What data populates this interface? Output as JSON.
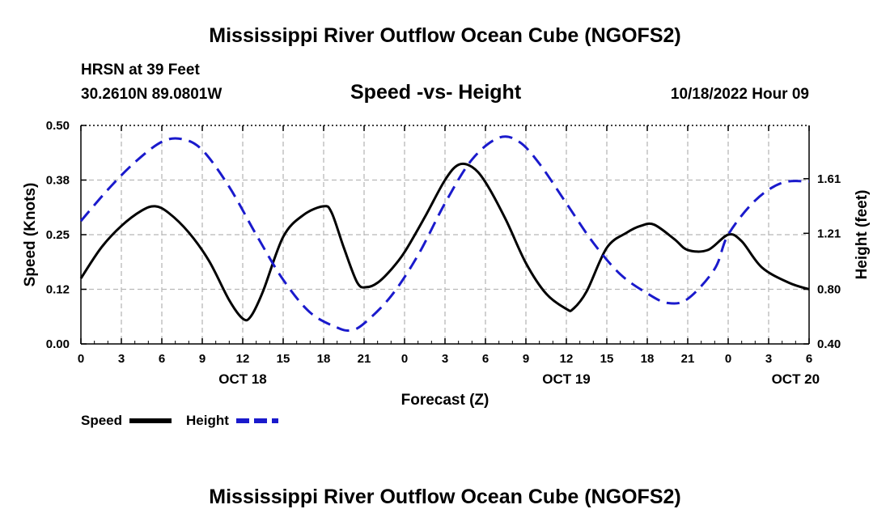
{
  "chart_data": {
    "type": "line",
    "title": "Mississippi River Outflow Ocean Cube (NGOFS2)",
    "subtitle": "Speed -vs- Height",
    "station": "HRSN at 39 Feet",
    "location": "30.2610N  89.0801W",
    "datetime": "10/18/2022 Hour 09",
    "xlabel": "Forecast (Z)",
    "ylabel": "Speed (Knots)",
    "y2label": "Height (feet)",
    "xlim": [
      0,
      54
    ],
    "ylim": [
      0,
      0.5
    ],
    "y2lim": [
      0.4,
      2.0
    ],
    "x_ticks": [
      0,
      3,
      6,
      9,
      12,
      15,
      18,
      21,
      24,
      27,
      30,
      33,
      36,
      39,
      42,
      45,
      48,
      51,
      54
    ],
    "x_tick_labels": [
      "0",
      "3",
      "6",
      "9",
      "12",
      "15",
      "18",
      "21",
      "0",
      "3",
      "6",
      "9",
      "12",
      "15",
      "18",
      "21",
      "0",
      "3",
      "6"
    ],
    "date_labels": [
      {
        "x": 12,
        "label": "OCT 18"
      },
      {
        "x": 36,
        "label": "OCT 19"
      },
      {
        "x": 53,
        "label": "OCT 20"
      }
    ],
    "y_ticks": [
      0.0,
      0.125,
      0.25,
      0.375,
      0.5
    ],
    "y_tick_labels": [
      "0.00",
      "0.12",
      "0.25",
      "0.38",
      "0.50"
    ],
    "y2_ticks": [
      0.4,
      0.8,
      1.21,
      1.61
    ],
    "y2_tick_labels": [
      "0.40",
      "0.80",
      "1.21",
      "1.61"
    ],
    "grid": true,
    "legend": "bottom-left",
    "series": [
      {
        "name": "Speed",
        "axis": "left",
        "color": "#000000",
        "style": "solid",
        "x": [
          0,
          1.5,
          3,
          4.5,
          5.5,
          6.5,
          8,
          9.5,
          11,
          12,
          12.6,
          13.5,
          15,
          16.5,
          18,
          18.6,
          19.5,
          20.5,
          21.2,
          22,
          23,
          24,
          25.5,
          27,
          28,
          29,
          30,
          31.5,
          33,
          34.5,
          36,
          36.5,
          37.5,
          39,
          40.5,
          41.5,
          42.5,
          44,
          45,
          46.5,
          48,
          49,
          50.5,
          52.5,
          54
        ],
        "values": [
          0.15,
          0.22,
          0.27,
          0.305,
          0.315,
          0.3,
          0.255,
          0.19,
          0.1,
          0.058,
          0.063,
          0.12,
          0.245,
          0.295,
          0.315,
          0.3,
          0.22,
          0.14,
          0.13,
          0.14,
          0.17,
          0.21,
          0.29,
          0.375,
          0.41,
          0.405,
          0.37,
          0.285,
          0.185,
          0.115,
          0.08,
          0.08,
          0.12,
          0.22,
          0.255,
          0.27,
          0.273,
          0.24,
          0.215,
          0.215,
          0.25,
          0.235,
          0.175,
          0.14,
          0.125
        ]
      },
      {
        "name": "Height",
        "axis": "right",
        "color": "#1a1acc",
        "style": "dashed",
        "x": [
          0,
          2,
          4,
          6,
          7.5,
          9,
          11,
          13,
          15,
          17,
          19,
          20,
          21,
          23,
          25,
          27,
          29,
          31,
          32.5,
          34,
          36,
          38,
          40,
          42,
          43.5,
          45,
          47,
          48,
          50,
          52,
          54
        ],
        "values": [
          1.3,
          1.53,
          1.73,
          1.88,
          1.9,
          1.82,
          1.55,
          1.2,
          0.87,
          0.63,
          0.52,
          0.5,
          0.55,
          0.75,
          1.05,
          1.43,
          1.75,
          1.91,
          1.88,
          1.72,
          1.43,
          1.14,
          0.91,
          0.77,
          0.7,
          0.73,
          0.95,
          1.2,
          1.45,
          1.58,
          1.59
        ]
      }
    ]
  }
}
